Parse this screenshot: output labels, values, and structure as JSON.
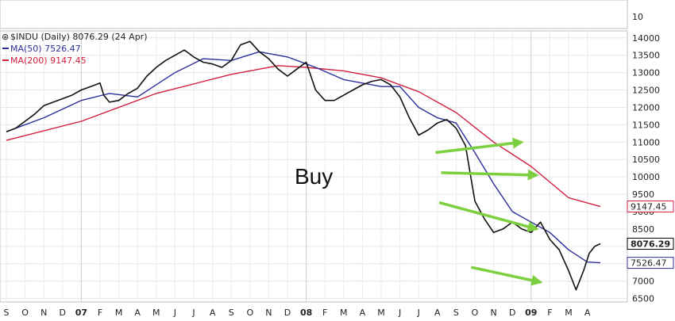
{
  "chart_data": {
    "type": "line",
    "title": "$INDU (Daily) 8076.29 (24 Apr)",
    "top_panel_ticks": [
      "10"
    ],
    "legend": [
      {
        "name": "MA(50) 7526.47",
        "color": "#2b2f9b"
      },
      {
        "name": "MA(200) 9147.45",
        "color": "#d11f3f"
      }
    ],
    "x_labels": [
      "S",
      "O",
      "N",
      "D",
      "07",
      "F",
      "M",
      "A",
      "M",
      "J",
      "J",
      "A",
      "S",
      "O",
      "N",
      "D",
      "08",
      "F",
      "M",
      "A",
      "M",
      "J",
      "J",
      "A",
      "S",
      "O",
      "N",
      "D",
      "09",
      "F",
      "M",
      "A"
    ],
    "y_ticks": [
      14000,
      13500,
      13000,
      12500,
      12000,
      11500,
      11000,
      10500,
      10000,
      9500,
      9000,
      8500,
      8000,
      7500,
      7000,
      6500
    ],
    "ylim": [
      6400,
      14200
    ],
    "xlim": [
      0,
      31.7
    ],
    "price": {
      "name": "$INDU",
      "color": "#111111",
      "points": [
        [
          0,
          11300
        ],
        [
          0.5,
          11400
        ],
        [
          1,
          11600
        ],
        [
          1.5,
          11800
        ],
        [
          2,
          12050
        ],
        [
          2.5,
          12150
        ],
        [
          3,
          12250
        ],
        [
          3.5,
          12350
        ],
        [
          4,
          12500
        ],
        [
          4.5,
          12600
        ],
        [
          5,
          12700
        ],
        [
          5.2,
          12350
        ],
        [
          5.5,
          12150
        ],
        [
          6,
          12200
        ],
        [
          6.5,
          12400
        ],
        [
          7,
          12550
        ],
        [
          7.5,
          12900
        ],
        [
          8,
          13150
        ],
        [
          8.5,
          13350
        ],
        [
          9,
          13500
        ],
        [
          9.5,
          13650
        ],
        [
          10,
          13450
        ],
        [
          10.5,
          13300
        ],
        [
          11,
          13250
        ],
        [
          11.5,
          13150
        ],
        [
          12,
          13350
        ],
        [
          12.5,
          13800
        ],
        [
          13,
          13900
        ],
        [
          13.5,
          13600
        ],
        [
          14,
          13400
        ],
        [
          14.5,
          13100
        ],
        [
          15,
          12900
        ],
        [
          15.5,
          13100
        ],
        [
          16,
          13300
        ],
        [
          16.5,
          12500
        ],
        [
          17,
          12200
        ],
        [
          17.5,
          12200
        ],
        [
          18,
          12350
        ],
        [
          18.5,
          12500
        ],
        [
          19,
          12650
        ],
        [
          19.5,
          12750
        ],
        [
          20,
          12800
        ],
        [
          20.5,
          12650
        ],
        [
          21,
          12300
        ],
        [
          21.5,
          11700
        ],
        [
          22,
          11200
        ],
        [
          22.5,
          11350
        ],
        [
          23,
          11550
        ],
        [
          23.5,
          11650
        ],
        [
          24,
          11400
        ],
        [
          24.5,
          10900
        ],
        [
          25,
          9300
        ],
        [
          25.5,
          8800
        ],
        [
          26,
          8400
        ],
        [
          26.5,
          8500
        ],
        [
          27,
          8700
        ],
        [
          27.5,
          8500
        ],
        [
          28,
          8400
        ],
        [
          28.5,
          8700
        ],
        [
          29,
          8200
        ],
        [
          29.5,
          7900
        ],
        [
          30,
          7300
        ],
        [
          30.4,
          6750
        ],
        [
          30.8,
          7300
        ],
        [
          31.1,
          7800
        ],
        [
          31.4,
          8000
        ],
        [
          31.7,
          8076
        ]
      ]
    },
    "series": [
      {
        "name": "MA(50) 7526.47",
        "color": "#2b2f9b",
        "points": [
          [
            0,
            11300
          ],
          [
            2,
            11700
          ],
          [
            4,
            12200
          ],
          [
            5.5,
            12400
          ],
          [
            7,
            12300
          ],
          [
            9,
            13000
          ],
          [
            10.5,
            13400
          ],
          [
            12,
            13350
          ],
          [
            13.5,
            13600
          ],
          [
            15,
            13450
          ],
          [
            16.5,
            13150
          ],
          [
            18,
            12800
          ],
          [
            20,
            12600
          ],
          [
            21,
            12600
          ],
          [
            22,
            12000
          ],
          [
            23,
            11700
          ],
          [
            24,
            11550
          ],
          [
            25,
            10700
          ],
          [
            26,
            9800
          ],
          [
            27,
            9000
          ],
          [
            28,
            8700
          ],
          [
            29,
            8400
          ],
          [
            30,
            7900
          ],
          [
            31,
            7550
          ],
          [
            31.7,
            7526
          ]
        ]
      },
      {
        "name": "MA(200) 9147.45",
        "color": "#d11f3f",
        "points": [
          [
            0,
            11050
          ],
          [
            4,
            11600
          ],
          [
            8,
            12400
          ],
          [
            12,
            12950
          ],
          [
            14.5,
            13200
          ],
          [
            16,
            13150
          ],
          [
            18,
            13050
          ],
          [
            20,
            12850
          ],
          [
            22,
            12450
          ],
          [
            24,
            11850
          ],
          [
            26,
            11000
          ],
          [
            28,
            10300
          ],
          [
            30,
            9400
          ],
          [
            31.7,
            9147
          ]
        ]
      }
    ],
    "right_labels": [
      {
        "text": "9147.45",
        "value": 9147.45,
        "color": "#d11f3f"
      },
      {
        "text": "8076.29",
        "value": 8076.29,
        "color": "#000000"
      },
      {
        "text": "7526.47",
        "value": 7526.47,
        "color": "#2b2f9b"
      }
    ],
    "annotation": {
      "text": "Buy"
    },
    "arrows": [
      {
        "from": [
          22.9,
          10700
        ],
        "to": [
          27.5,
          11000
        ]
      },
      {
        "from": [
          23.2,
          10120
        ],
        "to": [
          28.3,
          10050
        ]
      },
      {
        "from": [
          23.1,
          9260
        ],
        "to": [
          28.3,
          8500
        ]
      },
      {
        "from": [
          24.8,
          7400
        ],
        "to": [
          28.5,
          6970
        ]
      }
    ]
  }
}
